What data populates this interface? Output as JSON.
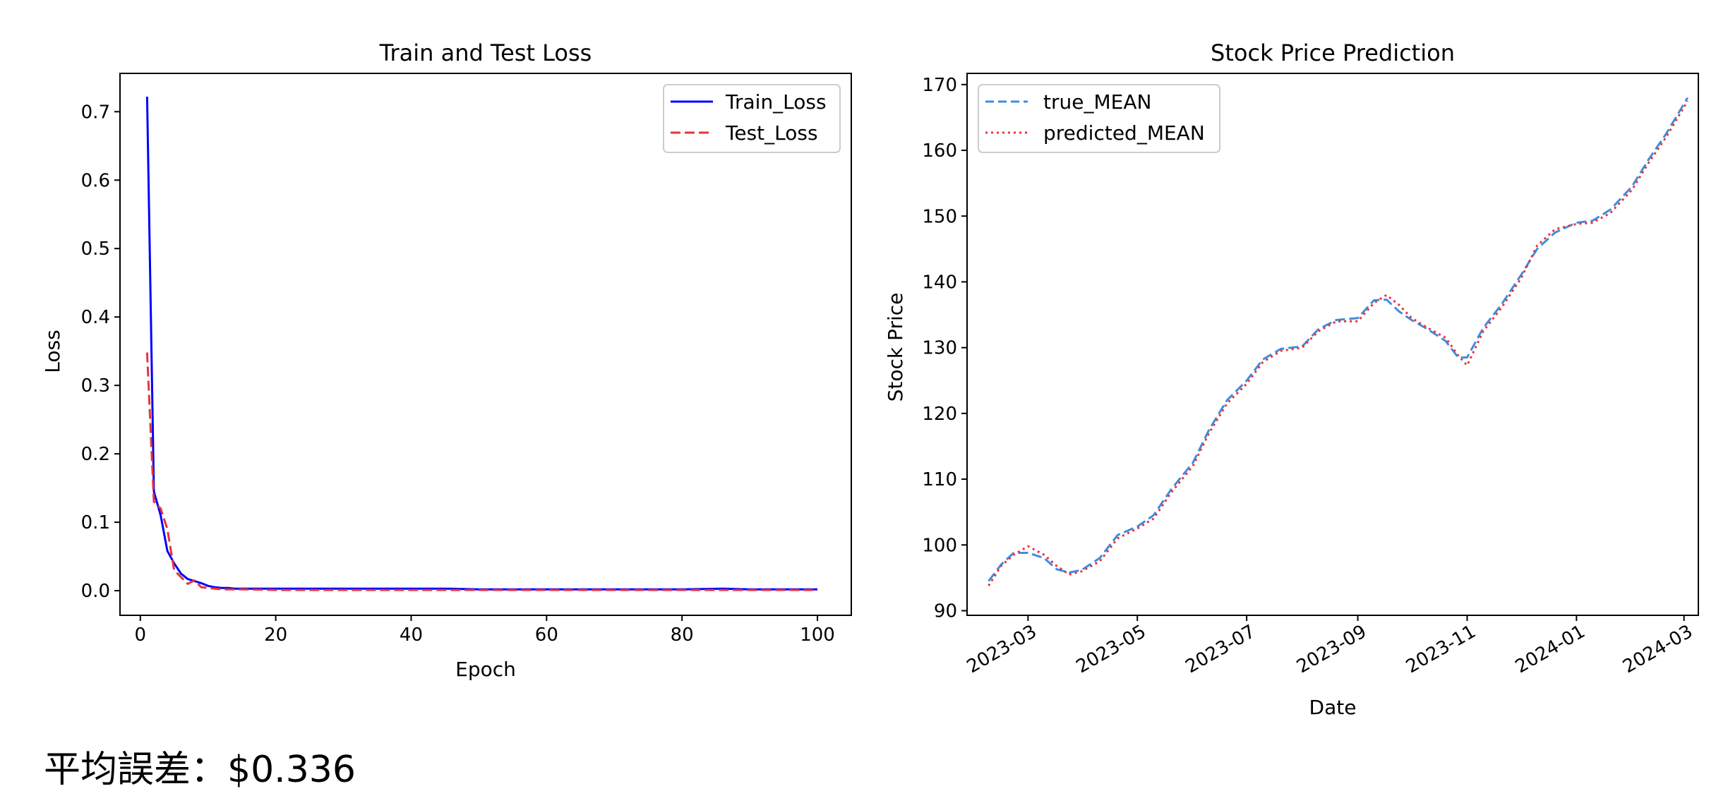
{
  "caption": "平均誤差：$0.336",
  "chart_data": [
    {
      "type": "line",
      "title": "Train and Test Loss",
      "xlabel": "Epoch",
      "ylabel": "Loss",
      "xlim": [
        -3,
        105
      ],
      "ylim": [
        -0.036,
        0.756
      ],
      "xticks": [
        0,
        20,
        40,
        60,
        80,
        100
      ],
      "yticks": [
        0.0,
        0.1,
        0.2,
        0.3,
        0.4,
        0.5,
        0.6,
        0.7
      ],
      "ytick_labels": [
        "0.0",
        "0.1",
        "0.2",
        "0.3",
        "0.4",
        "0.5",
        "0.6",
        "0.7"
      ],
      "legend_position": "upper right",
      "grid": false,
      "series": [
        {
          "name": "Train_Loss",
          "color": "#0000ff",
          "style": "solid",
          "x": [
            1,
            2,
            3,
            4,
            5,
            6,
            7,
            8,
            9,
            10,
            11,
            12,
            13,
            14,
            15,
            20,
            30,
            40,
            45,
            50,
            60,
            70,
            80,
            86,
            90,
            100
          ],
          "y": [
            0.722,
            0.145,
            0.11,
            0.058,
            0.04,
            0.025,
            0.017,
            0.014,
            0.011,
            0.007,
            0.005,
            0.004,
            0.004,
            0.003,
            0.003,
            0.003,
            0.003,
            0.003,
            0.003,
            0.002,
            0.002,
            0.002,
            0.002,
            0.003,
            0.002,
            0.002
          ]
        },
        {
          "name": "Test_Loss",
          "color": "#e8333a",
          "style": "dashed",
          "x": [
            1,
            2,
            3,
            4,
            5,
            6,
            7,
            8,
            9,
            10,
            11,
            12,
            13,
            14,
            15,
            20,
            30,
            40,
            50,
            60,
            70,
            80,
            90,
            100
          ],
          "y": [
            0.348,
            0.13,
            0.12,
            0.09,
            0.03,
            0.02,
            0.01,
            0.015,
            0.005,
            0.004,
            0.003,
            0.002,
            0.002,
            0.002,
            0.002,
            0.001,
            0.001,
            0.001,
            0.001,
            0.001,
            0.001,
            0.001,
            0.001,
            0.001
          ]
        }
      ]
    },
    {
      "type": "line",
      "title": "Stock Price Prediction",
      "xlabel": "Date",
      "ylabel": "Stock Price",
      "xlim": [
        "2023-01-26",
        "2024-03-09"
      ],
      "ylim": [
        89.3,
        171.7
      ],
      "xticks": [
        "2023-03-01",
        "2023-05-01",
        "2023-07-01",
        "2023-09-01",
        "2023-11-01",
        "2024-01-01",
        "2024-03-01"
      ],
      "xtick_labels": [
        "2023-03",
        "2023-05",
        "2023-07",
        "2023-09",
        "2023-11",
        "2024-01",
        "2024-03"
      ],
      "yticks": [
        90,
        100,
        110,
        120,
        130,
        140,
        150,
        160,
        170
      ],
      "legend_position": "upper left",
      "grid": false,
      "series": [
        {
          "name": "true_MEAN",
          "color": "#3d8ee0",
          "style": "dashed",
          "x": [
            "2023-02-07",
            "2023-02-14",
            "2023-02-21",
            "2023-03-01",
            "2023-03-10",
            "2023-03-17",
            "2023-03-24",
            "2023-03-31",
            "2023-04-10",
            "2023-04-20",
            "2023-05-01",
            "2023-05-10",
            "2023-05-20",
            "2023-06-01",
            "2023-06-10",
            "2023-06-20",
            "2023-07-01",
            "2023-07-10",
            "2023-07-20",
            "2023-08-01",
            "2023-08-10",
            "2023-08-20",
            "2023-09-01",
            "2023-09-10",
            "2023-09-17",
            "2023-09-24",
            "2023-10-01",
            "2023-10-10",
            "2023-10-20",
            "2023-10-27",
            "2023-11-01",
            "2023-11-10",
            "2023-11-20",
            "2023-12-01",
            "2023-12-10",
            "2023-12-20",
            "2024-01-01",
            "2024-01-10",
            "2024-01-20",
            "2024-02-01",
            "2024-02-10",
            "2024-02-20",
            "2024-03-03"
          ],
          "y": [
            94.5,
            97.0,
            98.8,
            98.8,
            98.0,
            96.3,
            95.8,
            96.2,
            98.0,
            101.5,
            102.8,
            104.5,
            108.5,
            112.5,
            117.5,
            122.0,
            125.0,
            128.2,
            129.8,
            130.2,
            132.8,
            134.2,
            134.5,
            137.2,
            137.3,
            135.5,
            134.2,
            132.8,
            131.0,
            128.5,
            128.5,
            133.0,
            136.5,
            141.0,
            145.0,
            147.5,
            149.0,
            149.3,
            151.0,
            154.5,
            158.5,
            162.5,
            168.0
          ]
        },
        {
          "name": "predicted_MEAN",
          "color": "#e8333a",
          "style": "dotted",
          "x": [
            "2023-02-07",
            "2023-02-14",
            "2023-02-21",
            "2023-03-01",
            "2023-03-10",
            "2023-03-17",
            "2023-03-24",
            "2023-03-31",
            "2023-04-10",
            "2023-04-20",
            "2023-05-01",
            "2023-05-10",
            "2023-05-20",
            "2023-06-01",
            "2023-06-10",
            "2023-06-20",
            "2023-07-01",
            "2023-07-10",
            "2023-07-20",
            "2023-08-01",
            "2023-08-10",
            "2023-08-20",
            "2023-09-01",
            "2023-09-10",
            "2023-09-17",
            "2023-09-24",
            "2023-10-01",
            "2023-10-10",
            "2023-10-20",
            "2023-10-27",
            "2023-11-01",
            "2023-11-10",
            "2023-11-20",
            "2023-12-01",
            "2023-12-10",
            "2023-12-20",
            "2024-01-01",
            "2024-01-10",
            "2024-01-20",
            "2024-02-01",
            "2024-02-10",
            "2024-02-20",
            "2024-03-03"
          ],
          "y": [
            93.8,
            96.8,
            98.5,
            99.8,
            98.5,
            96.8,
            95.5,
            96.0,
            97.5,
            101.0,
            102.5,
            104.0,
            108.0,
            112.0,
            117.0,
            121.5,
            124.5,
            127.8,
            129.5,
            130.0,
            132.5,
            134.0,
            134.0,
            136.8,
            138.0,
            136.5,
            134.5,
            133.0,
            131.5,
            128.8,
            127.3,
            132.5,
            136.0,
            140.5,
            145.5,
            148.0,
            148.8,
            149.0,
            150.5,
            154.0,
            158.0,
            162.0,
            167.5
          ]
        }
      ]
    }
  ]
}
